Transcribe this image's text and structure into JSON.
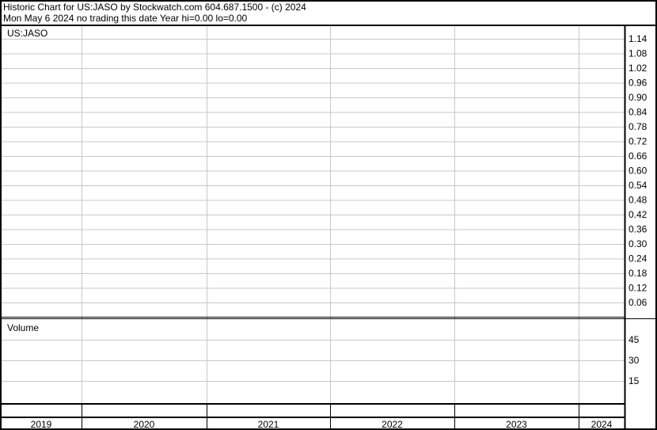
{
  "header": {
    "line1": "Historic Chart for US:JASO by Stockwatch.com 604.687.1500 - (c) 2024",
    "line2": "Mon May  6 2024   no trading this date  Year hi=0.00  lo=0.00"
  },
  "chart_data": [
    {
      "type": "line",
      "title": "US:JASO",
      "y_ticks": [
        "1.14",
        "1.08",
        "1.02",
        "0.96",
        "0.90",
        "0.84",
        "0.78",
        "0.72",
        "0.66",
        "0.60",
        "0.54",
        "0.48",
        "0.42",
        "0.36",
        "0.30",
        "0.24",
        "0.18",
        "0.12",
        "0.06"
      ],
      "x_categories": [
        "2019",
        "2020",
        "2021",
        "2022",
        "2023",
        "2024"
      ],
      "series": [],
      "grid": true
    },
    {
      "type": "bar",
      "title": "Volume",
      "y_ticks": [
        "45",
        "30",
        "15"
      ],
      "x_categories": [
        "2019",
        "2020",
        "2021",
        "2022",
        "2023",
        "2024"
      ],
      "series": [],
      "grid": true
    }
  ],
  "colors": {
    "grid": "#c8c8c8",
    "border": "#000000"
  }
}
